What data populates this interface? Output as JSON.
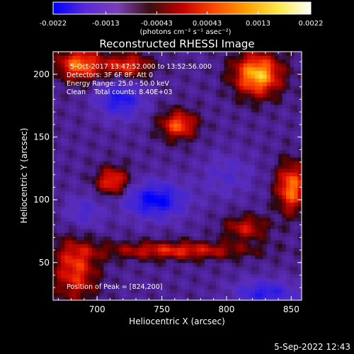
{
  "chart_data": {
    "type": "heatmap",
    "title": "Reconstructed RHESSI Image",
    "xlabel": "Heliocentric X (arcsec)",
    "ylabel": "Heliocentric Y (arcsec)",
    "xlim": [
      666,
      858
    ],
    "ylim": [
      20,
      218
    ],
    "x_ticks": [
      700,
      750,
      800,
      850
    ],
    "y_ticks": [
      50,
      100,
      150,
      200
    ],
    "colorbar": {
      "range": [
        -0.0022,
        0.0022
      ],
      "ticks": [
        "-0.0022",
        "-0.0013",
        "-0.00043",
        "0.00043",
        "0.0013",
        "0.0022"
      ],
      "units": "(photons cm⁻² s⁻¹ asec⁻²)",
      "colors": [
        "#0000ff",
        "#5a2ad6",
        "#7a3fb8",
        "#3a1010",
        "#c00000",
        "#ff4800",
        "#ffa000",
        "#ffe84a",
        "#ffffff"
      ]
    },
    "annotations": {
      "time_range": "5-Oct-2017 13:47:52.000 to 13:52:56.000",
      "detectors": "Detectors: 3F 6F 8F, Att 0",
      "energy_range": "Energy Range: 25.0 - 50.0 keV",
      "clean_line": "Clean    Total counts: 8.40E+03",
      "peak_position": "Position of Peak = [824,200]"
    },
    "footer_date": "5-Sep-2022 12:43",
    "sources": [
      {
        "x": 824,
        "y": 200,
        "amplitude": 0.0022,
        "sx": 13,
        "sy": 12
      },
      {
        "x": 686,
        "y": 208,
        "amplitude": 0.00175,
        "sx": 12,
        "sy": 9
      },
      {
        "x": 723,
        "y": 207,
        "amplitude": 0.0014,
        "sx": 13,
        "sy": 7
      },
      {
        "x": 763,
        "y": 160,
        "amplitude": 0.0016,
        "sx": 10,
        "sy": 8
      },
      {
        "x": 712,
        "y": 115,
        "amplitude": 0.0015,
        "sx": 9,
        "sy": 8
      },
      {
        "x": 850,
        "y": 110,
        "amplitude": 0.0018,
        "sx": 8,
        "sy": 14
      },
      {
        "x": 761,
        "y": 60,
        "amplitude": 0.0013,
        "sx": 40,
        "sy": 5
      },
      {
        "x": 683,
        "y": 45,
        "amplitude": 0.0014,
        "sx": 12,
        "sy": 18
      },
      {
        "x": 815,
        "y": 78,
        "amplitude": 0.0011,
        "sx": 12,
        "sy": 7
      }
    ],
    "minima": [
      {
        "x": 718,
        "y": 180,
        "amplitude": -0.0015,
        "sx": 12,
        "sy": 10
      },
      {
        "x": 745,
        "y": 100,
        "amplitude": -0.0018,
        "sx": 16,
        "sy": 10
      },
      {
        "x": 830,
        "y": 26,
        "amplitude": -0.0014,
        "sx": 16,
        "sy": 7
      },
      {
        "x": 690,
        "y": 90,
        "amplitude": -0.0008,
        "sx": 10,
        "sy": 10
      },
      {
        "x": 800,
        "y": 120,
        "amplitude": -0.0006,
        "sx": 14,
        "sy": 12
      }
    ]
  }
}
